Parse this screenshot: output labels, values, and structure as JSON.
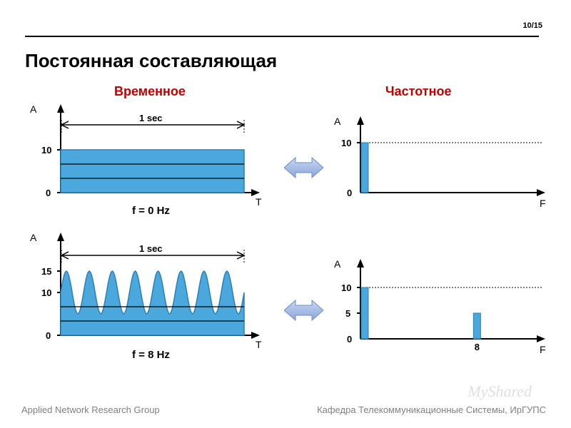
{
  "page_number": "10/15",
  "title": "Постоянная составляющая",
  "columns": {
    "time": "Временное",
    "freq": "Частотное"
  },
  "footer": {
    "left": "Applied Network Research Group",
    "right": "Кафедра Телекоммуникационные Системы, ИрГУПС"
  },
  "watermark": "MyShared",
  "colors": {
    "fill": "#4aa8dd",
    "stroke": "#2b7fb8",
    "arrow_fill": "#9db8e6",
    "arrow_stroke": "#6e8bc4",
    "accent": "#c00000"
  },
  "row1": {
    "time": {
      "y_axis_label": "A",
      "x_axis_label": "T",
      "y_ticks": [
        "10",
        "0"
      ],
      "span_label": "1 sec",
      "caption": "f = 0  Hz",
      "dc_level": 10,
      "ymax": 12
    },
    "freq": {
      "y_axis_label": "A",
      "x_axis_label": "F",
      "y_ticks": [
        "10",
        "0"
      ],
      "bars": [
        {
          "x": 0,
          "h": 10
        }
      ],
      "ymax": 12
    }
  },
  "row2": {
    "time": {
      "y_axis_label": "A",
      "x_axis_label": "T",
      "y_ticks": [
        "15",
        "10",
        "0"
      ],
      "span_label": "1 sec",
      "caption": "f = 8  Hz",
      "dc_level": 10,
      "wave_amp": 5,
      "wave_cycles": 8,
      "ymax": 18
    },
    "freq": {
      "y_axis_label": "A",
      "x_axis_label": "F",
      "y_ticks": [
        "10",
        "5",
        "0"
      ],
      "x_ticks": [
        "8"
      ],
      "bars": [
        {
          "x": 0,
          "h": 10
        },
        {
          "x": 8,
          "h": 5
        }
      ],
      "xmax": 12,
      "ymax": 12
    }
  }
}
